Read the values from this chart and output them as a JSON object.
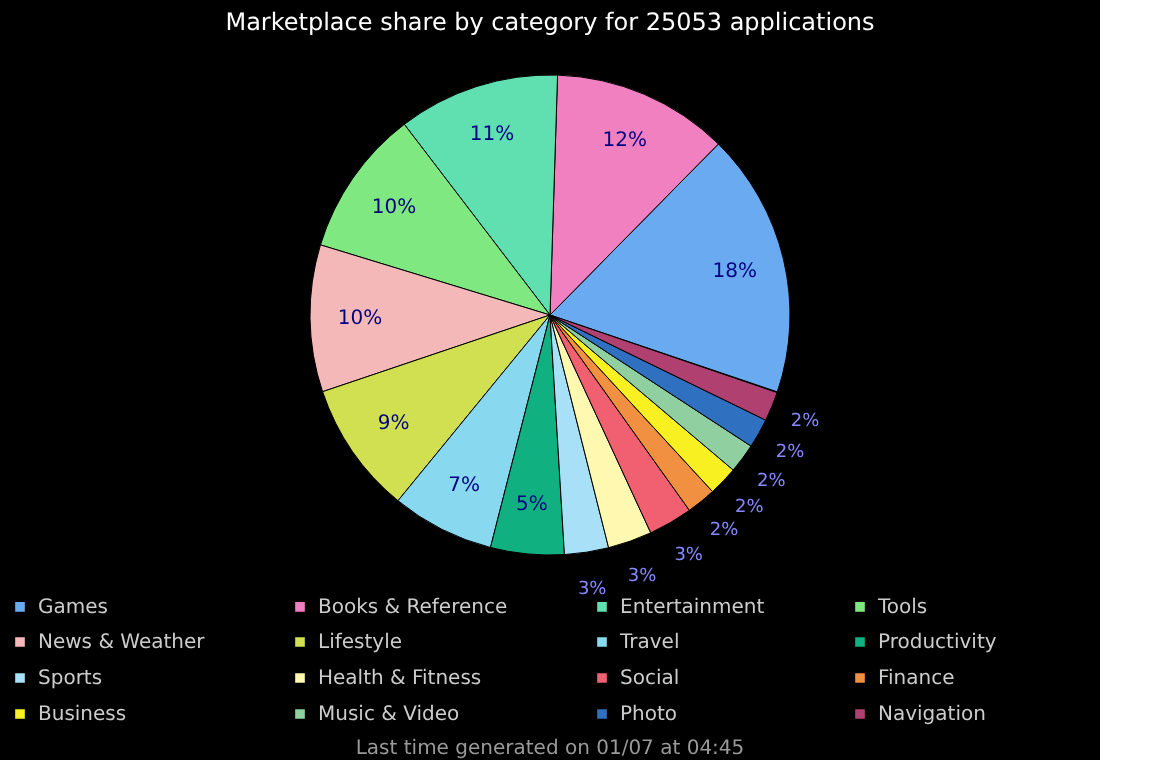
{
  "chart_data": {
    "type": "pie",
    "title": "Marketplace share by category for 25053 applications",
    "categories": [
      "Games",
      "Books & Reference",
      "Entertainment",
      "Tools",
      "News & Weather",
      "Lifestyle",
      "Travel",
      "Productivity",
      "Sports",
      "Health & Fitness",
      "Social",
      "Finance",
      "Business",
      "Music & Video",
      "Photo",
      "Navigation"
    ],
    "values": [
      18,
      12,
      11,
      10,
      10,
      9,
      7,
      5,
      3,
      3,
      3,
      2,
      2,
      2,
      2,
      2
    ],
    "value_labels": [
      "18%",
      "12%",
      "11%",
      "10%",
      "10%",
      "9%",
      "7%",
      "5%",
      "3%",
      "3%",
      "3%",
      "2%",
      "2%",
      "2%",
      "2%",
      "2%"
    ],
    "colors": [
      "#6aaaf0",
      "#f080c0",
      "#60e0b0",
      "#80e880",
      "#f4b8b8",
      "#d0e050",
      "#88d8f0",
      "#10b080",
      "#a8e0f8",
      "#fff8b0",
      "#f06070",
      "#f09040",
      "#f8f020",
      "#90d0a0",
      "#3070c0",
      "#b04070"
    ],
    "legend": "bottom",
    "annotations": [
      "Last time generated on 01/07 at 04:45"
    ]
  }
}
